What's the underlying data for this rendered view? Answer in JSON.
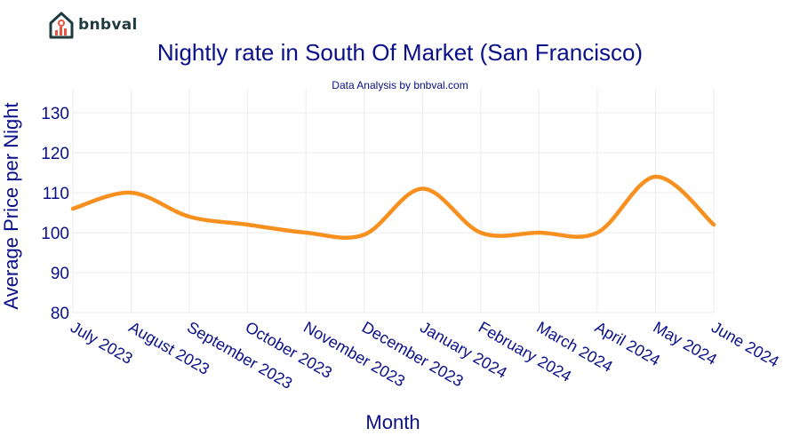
{
  "brand": {
    "name": "bnbval",
    "logo_icon": "house-chart-logo-icon"
  },
  "colors": {
    "line": "#f7901e",
    "text": "#0a0f8a",
    "grid": "#ebebeb"
  },
  "chart_data": {
    "type": "line",
    "title": "Nightly rate in South Of Market (San Francisco)",
    "subtitle": "Data Analysis by bnbval.com",
    "xlabel": "Month",
    "ylabel": "Average Price per Night",
    "ylim": [
      80,
      136
    ],
    "yticks": [
      80,
      90,
      100,
      110,
      120,
      130
    ],
    "grid": true,
    "categories": [
      "July 2023",
      "August 2023",
      "September 2023",
      "October 2023",
      "November 2023",
      "December 2023",
      "January 2024",
      "February 2024",
      "March 2024",
      "April 2024",
      "May 2024",
      "June 2024"
    ],
    "series": [
      {
        "values": [
          106,
          110,
          104,
          102,
          100,
          99.5,
          111,
          100,
          100,
          100,
          114,
          102
        ]
      }
    ]
  }
}
